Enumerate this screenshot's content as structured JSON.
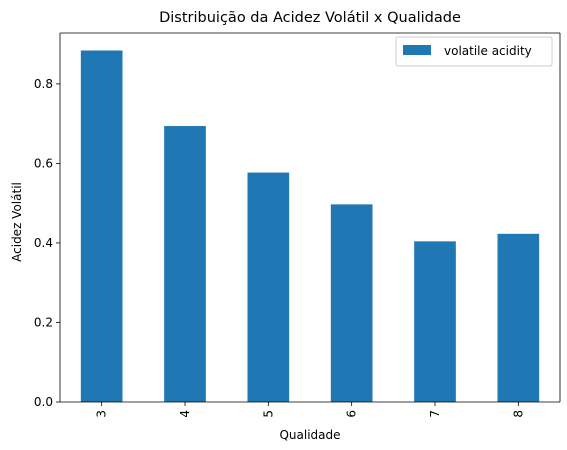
{
  "chart_data": {
    "type": "bar",
    "title": "Distribuição da Acidez Volátil x Qualidade",
    "xlabel": "Qualidade",
    "ylabel": "Acidez Volátil",
    "categories": [
      "3",
      "4",
      "5",
      "6",
      "7",
      "8"
    ],
    "series": [
      {
        "name": "volatile acidity",
        "color": "#1f77b4",
        "values": [
          0.884,
          0.694,
          0.577,
          0.497,
          0.404,
          0.423
        ]
      }
    ],
    "ylim": [
      0,
      0.928
    ],
    "yticks": [
      "0.0",
      "0.2",
      "0.4",
      "0.6",
      "0.8"
    ],
    "grid": false,
    "legend": "top-right",
    "x_tick_rotation": "vertical"
  }
}
